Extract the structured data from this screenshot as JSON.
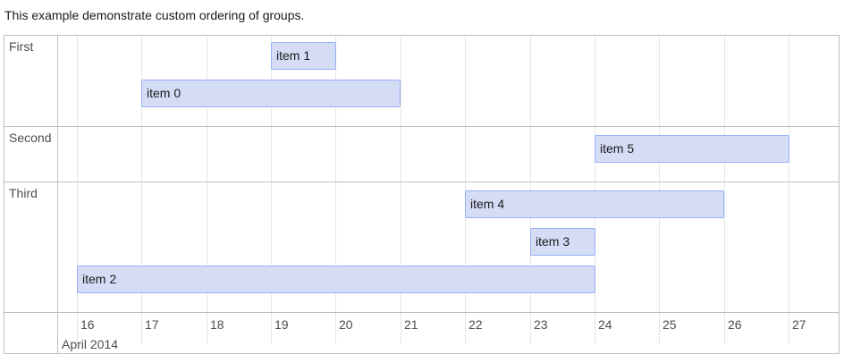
{
  "intro_text": "This example demonstrate custom ordering of groups.",
  "groups": [
    "First",
    "Second",
    "Third"
  ],
  "items": [
    {
      "label": "item 0",
      "group": "First"
    },
    {
      "label": "item 1",
      "group": "First"
    },
    {
      "label": "item 5",
      "group": "Second"
    },
    {
      "label": "item 4",
      "group": "Third"
    },
    {
      "label": "item 3",
      "group": "Third"
    },
    {
      "label": "item 2",
      "group": "Third"
    }
  ],
  "axis": {
    "days": [
      "16",
      "17",
      "18",
      "19",
      "20",
      "21",
      "22",
      "23",
      "24",
      "25",
      "26",
      "27"
    ],
    "month_label": "April 2014"
  },
  "colors": {
    "item_fill": "#d5ddf6",
    "item_border": "#97b0f8",
    "frame_border": "#bfbfbf",
    "gridline": "#e5e5e5"
  }
}
